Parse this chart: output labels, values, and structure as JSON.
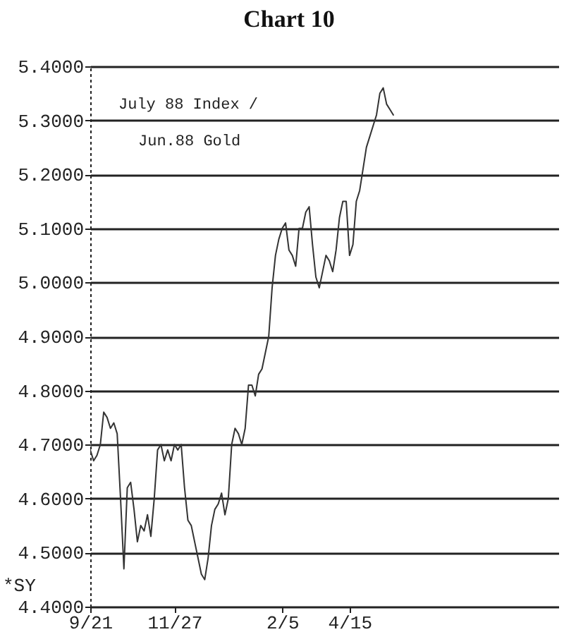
{
  "chart_data": {
    "type": "line",
    "title": "Chart 10",
    "annotations": [
      "July 88 Index /",
      "Jun.88 Gold",
      "*SY"
    ],
    "categories": [
      "9/21",
      null,
      null,
      null,
      null,
      null,
      null,
      null,
      null,
      null,
      null,
      null,
      null,
      null,
      null,
      null,
      null,
      null,
      null,
      null,
      null,
      null,
      null,
      null,
      null,
      "11/27",
      null,
      null,
      null,
      null,
      null,
      null,
      null,
      null,
      null,
      null,
      null,
      null,
      null,
      null,
      null,
      null,
      null,
      null,
      null,
      null,
      null,
      null,
      null,
      null,
      null,
      null,
      null,
      null,
      null,
      null,
      null,
      "2/5",
      null,
      null,
      null,
      null,
      null,
      null,
      null,
      null,
      null,
      null,
      null,
      null,
      null,
      null,
      null,
      null,
      null,
      null,
      null,
      "4/15",
      null,
      null,
      null,
      null,
      null,
      null,
      null,
      null,
      null,
      null,
      null,
      null,
      null,
      null,
      null,
      null,
      null,
      null,
      null,
      null,
      null,
      null,
      null,
      null,
      null,
      null,
      null,
      null,
      null,
      null,
      null,
      null,
      null,
      null,
      null,
      null,
      null,
      null,
      null,
      null,
      null,
      null,
      null,
      null,
      null,
      null,
      null,
      null,
      null,
      null,
      null,
      null,
      null,
      null,
      null,
      null,
      null,
      null,
      null,
      null,
      null,
      null
    ],
    "series": [
      {
        "color": "#333333",
        "values": [
          4.69,
          4.67,
          4.68,
          4.7,
          4.76,
          4.75,
          4.73,
          4.74,
          4.72,
          4.6,
          4.47,
          4.62,
          4.63,
          4.58,
          4.52,
          4.55,
          4.54,
          4.57,
          4.53,
          4.6,
          4.69,
          4.7,
          4.67,
          4.69,
          4.67,
          4.7,
          4.69,
          4.7,
          4.62,
          4.56,
          4.55,
          4.52,
          4.49,
          4.46,
          4.45,
          4.49,
          4.55,
          4.58,
          4.59,
          4.61,
          4.57,
          4.6,
          4.7,
          4.73,
          4.72,
          4.7,
          4.73,
          4.81,
          4.81,
          4.79,
          4.83,
          4.84,
          4.87,
          4.9,
          4.99,
          5.05,
          5.08,
          5.1,
          5.11,
          5.06,
          5.05,
          5.03,
          5.1,
          5.1,
          5.13,
          5.14,
          5.07,
          5.01,
          4.99,
          5.02,
          5.05,
          5.04,
          5.02,
          5.06,
          5.12,
          5.15,
          5.15,
          5.05,
          5.07,
          5.15,
          5.17,
          5.21,
          5.25,
          5.27,
          5.29,
          5.31,
          5.35,
          5.36,
          5.33,
          5.32,
          5.31,
          null,
          null,
          null,
          null,
          null,
          null,
          null,
          null,
          null,
          null,
          null,
          null,
          null,
          null,
          null,
          null,
          null,
          null,
          null,
          null,
          null,
          null,
          null,
          null,
          null,
          null,
          null,
          null,
          null,
          null,
          null,
          null,
          null,
          null,
          null,
          null,
          null,
          null,
          null,
          null,
          null,
          null,
          null,
          null,
          null,
          null,
          null,
          null,
          null
        ]
      }
    ],
    "ylim": [
      4.4,
      5.4
    ],
    "yticks": [
      {
        "value": 4.4,
        "label": "4.4000"
      },
      {
        "value": 4.5,
        "label": "4.5000"
      },
      {
        "value": 4.6,
        "label": "4.6000"
      },
      {
        "value": 4.7,
        "label": "4.7000"
      },
      {
        "value": 4.8,
        "label": "4.8000"
      },
      {
        "value": 4.9,
        "label": "4.9000"
      },
      {
        "value": 5.0,
        "label": "5.0000"
      },
      {
        "value": 5.1,
        "label": "5.1000"
      },
      {
        "value": 5.2,
        "label": "5.2000"
      },
      {
        "value": 5.3,
        "label": "5.3000"
      },
      {
        "value": 5.4,
        "label": "5.4000"
      }
    ],
    "grid": "y",
    "marker": "none",
    "line_style": "solid"
  }
}
